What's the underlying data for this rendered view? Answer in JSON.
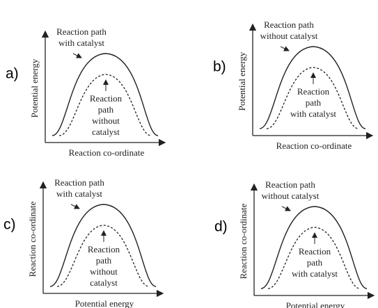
{
  "panels": [
    {
      "letter": "a)",
      "y_axis": "Potential energy",
      "x_axis": "Reaction co-ordinate",
      "upper_label": [
        "Reaction path",
        "with catalyst"
      ],
      "lower_label": [
        "Reaction",
        "path",
        "without",
        "catalyst"
      ]
    },
    {
      "letter": "b)",
      "y_axis": "Potential energy",
      "x_axis": "Reaction co-ordinate",
      "upper_label": [
        "Reaction path",
        "without catalyst"
      ],
      "lower_label": [
        "Reaction",
        "path",
        "with catalyst"
      ]
    },
    {
      "letter": "c)",
      "y_axis": "Reaction co-ordinate",
      "x_axis": "Potential energy",
      "upper_label": [
        "Reaction path",
        "with catalyst"
      ],
      "lower_label": [
        "Reaction",
        "path",
        "without",
        "catalyst"
      ]
    },
    {
      "letter": "d)",
      "y_axis": "Reaction co-ordinate",
      "x_axis": "Potential energy",
      "upper_label": [
        "Reaction path",
        "without catalyst"
      ],
      "lower_label": [
        "Reaction",
        "path",
        "with catalyst"
      ]
    }
  ]
}
